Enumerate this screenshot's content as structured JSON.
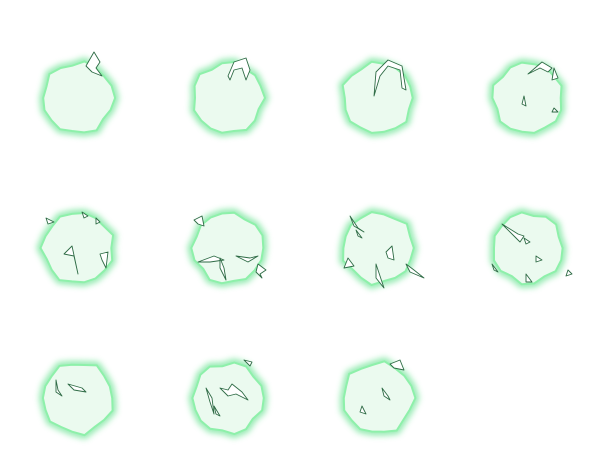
{
  "sprite_sheet": {
    "frame_count": 11,
    "columns": 4,
    "rows": 3,
    "colors": {
      "background": "#ffffff",
      "bubble_fill": "#ebfaef",
      "bubble_glow": "#5fe08a",
      "bubble_edge": "#8ef0aa",
      "shard_fill": "#ffffff",
      "shard_outline": "#2e6b45"
    },
    "frames": [
      {
        "index": 1,
        "state": "bubble-with-crack-top"
      },
      {
        "index": 2,
        "state": "bubble-arch-crack"
      },
      {
        "index": 3,
        "state": "bubble-large-arch-crack"
      },
      {
        "index": 4,
        "state": "bubble-splitting"
      },
      {
        "index": 5,
        "state": "bubble-shards-forming"
      },
      {
        "index": 6,
        "state": "bubble-shards-scatter"
      },
      {
        "index": 7,
        "state": "bubble-shards-spread"
      },
      {
        "index": 8,
        "state": "bubble-shards-fading"
      },
      {
        "index": 9,
        "state": "bubble-few-shards"
      },
      {
        "index": 10,
        "state": "bubble-shards-settling"
      },
      {
        "index": 11,
        "state": "bubble-last-shards"
      }
    ]
  }
}
